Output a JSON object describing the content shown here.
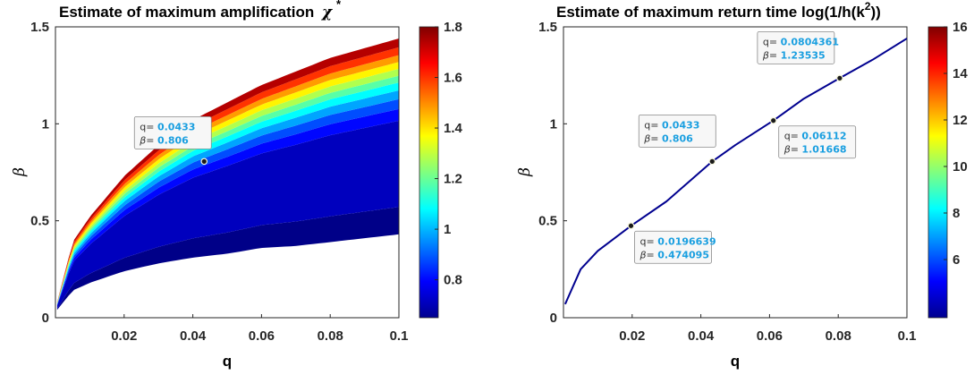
{
  "chart_data": [
    {
      "type": "heatmap",
      "title": "Estimate of maximum amplification",
      "title_symbol": "χ",
      "title_superscript": "*",
      "xlabel": "q",
      "ylabel": "β",
      "xlim": [
        0,
        0.1
      ],
      "ylim": [
        0,
        1.5
      ],
      "xticks": [
        "0.02",
        "0.04",
        "0.06",
        "0.08",
        "0.1"
      ],
      "yticks": [
        "0",
        "0.5",
        "1",
        "1.5"
      ],
      "colorbar": {
        "colormap": "jet",
        "range": [
          0.65,
          1.8
        ],
        "ticks": [
          "0.8",
          "1",
          "1.2",
          "1.4",
          "1.6",
          "1.8"
        ]
      },
      "region_upper_beta": [
        [
          0.0005,
          0.08
        ],
        [
          0.005,
          0.39
        ],
        [
          0.01,
          0.52
        ],
        [
          0.02,
          0.73
        ],
        [
          0.03,
          0.89
        ],
        [
          0.04,
          1.02
        ],
        [
          0.05,
          1.11
        ],
        [
          0.06,
          1.2
        ],
        [
          0.07,
          1.27
        ],
        [
          0.08,
          1.34
        ],
        [
          0.09,
          1.39
        ],
        [
          0.1,
          1.44
        ]
      ],
      "region_lower_beta": [
        [
          0.0005,
          0.04
        ],
        [
          0.005,
          0.14
        ],
        [
          0.01,
          0.18
        ],
        [
          0.02,
          0.24
        ],
        [
          0.03,
          0.28
        ],
        [
          0.04,
          0.31
        ],
        [
          0.05,
          0.33
        ],
        [
          0.06,
          0.36
        ],
        [
          0.07,
          0.37
        ],
        [
          0.08,
          0.39
        ],
        [
          0.09,
          0.41
        ],
        [
          0.1,
          0.43
        ]
      ],
      "datatips": [
        {
          "q_label": "q=",
          "q": "0.0433",
          "beta_label": "β=",
          "beta": "0.806"
        }
      ]
    },
    {
      "type": "line",
      "title": "Estimate of maximum return time log(1/h(k",
      "title_superscript": "2",
      "title_suffix": "))",
      "xlabel": "q",
      "ylabel": "β",
      "xlim": [
        0,
        0.1
      ],
      "ylim": [
        0,
        1.5
      ],
      "xticks": [
        "0.02",
        "0.04",
        "0.06",
        "0.08",
        "0.1"
      ],
      "yticks": [
        "0",
        "0.5",
        "1",
        "1.5"
      ],
      "colorbar": {
        "colormap": "jet",
        "range": [
          3.5,
          16
        ],
        "ticks": [
          "6",
          "8",
          "10",
          "12",
          "14",
          "16"
        ]
      },
      "series": [
        {
          "x": [
            0.0005,
            0.005,
            0.01,
            0.0196639,
            0.03,
            0.0433,
            0.05,
            0.06112,
            0.07,
            0.0804361,
            0.09,
            0.1
          ],
          "y": [
            0.07,
            0.25,
            0.345,
            0.474095,
            0.6,
            0.806,
            0.89,
            1.01668,
            1.13,
            1.23535,
            1.33,
            1.44
          ]
        }
      ],
      "datatips": [
        {
          "q_label": "q=",
          "q": "0.0804361",
          "beta_label": "β=",
          "beta": "1.23535"
        },
        {
          "q_label": "q=",
          "q": "0.0433",
          "beta_label": "β=",
          "beta": "0.806"
        },
        {
          "q_label": "q=",
          "q": "0.06112",
          "beta_label": "β=",
          "beta": "1.01668"
        },
        {
          "q_label": "q=",
          "q": "0.0196639",
          "beta_label": "β=",
          "beta": "0.474095"
        }
      ]
    }
  ]
}
